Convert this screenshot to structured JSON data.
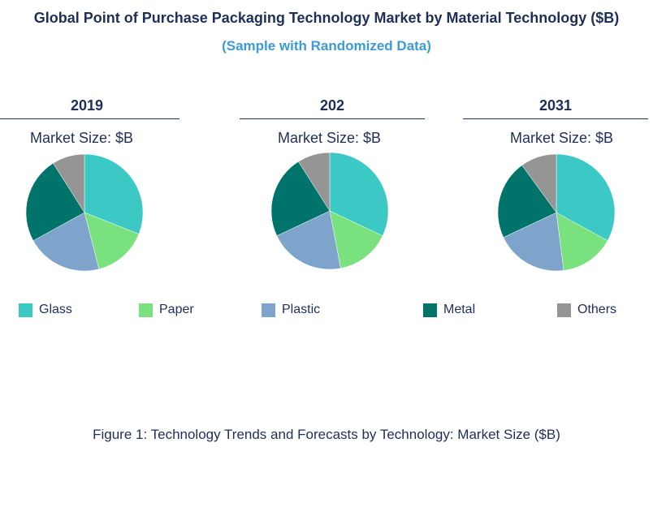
{
  "header": {
    "title": "Global Point of Purchase Packaging Technology Market by Material Technology ($B)",
    "subtitle": "(Sample with Randomized Data)"
  },
  "caption": "Figure 1: Technology Trends and Forecasts by Technology: Market Size ($B)",
  "chart_data": [
    {
      "type": "pie",
      "title": "2019",
      "subtitle": "Market Size: $B",
      "categories": [
        "Glass",
        "Paper",
        "Plastic",
        "Metal",
        "Others"
      ],
      "values": [
        31,
        15,
        21,
        24,
        9
      ],
      "colors": [
        "#3cc9c5",
        "#79e17e",
        "#7fa4cc",
        "#00736a",
        "#959595"
      ]
    },
    {
      "type": "pie",
      "title": "202",
      "subtitle": "Market Size: $B",
      "categories": [
        "Glass",
        "Paper",
        "Plastic",
        "Metal",
        "Others"
      ],
      "values": [
        32,
        15,
        21,
        23,
        9
      ],
      "colors": [
        "#3cc9c5",
        "#79e17e",
        "#7fa4cc",
        "#00736a",
        "#959595"
      ]
    },
    {
      "type": "pie",
      "title": "2031",
      "subtitle": "Market Size: $B",
      "categories": [
        "Glass",
        "Paper",
        "Plastic",
        "Metal",
        "Others"
      ],
      "values": [
        33,
        15,
        20,
        22,
        10
      ],
      "colors": [
        "#3cc9c5",
        "#79e17e",
        "#7fa4cc",
        "#00736a",
        "#959595"
      ]
    }
  ],
  "legend": [
    {
      "label": "Glass",
      "color": "#3cc9c5"
    },
    {
      "label": "Paper",
      "color": "#79e17e"
    },
    {
      "label": "Plastic",
      "color": "#7fa4cc"
    },
    {
      "label": "Metal",
      "color": "#00736a"
    },
    {
      "label": "Others",
      "color": "#959595"
    }
  ]
}
